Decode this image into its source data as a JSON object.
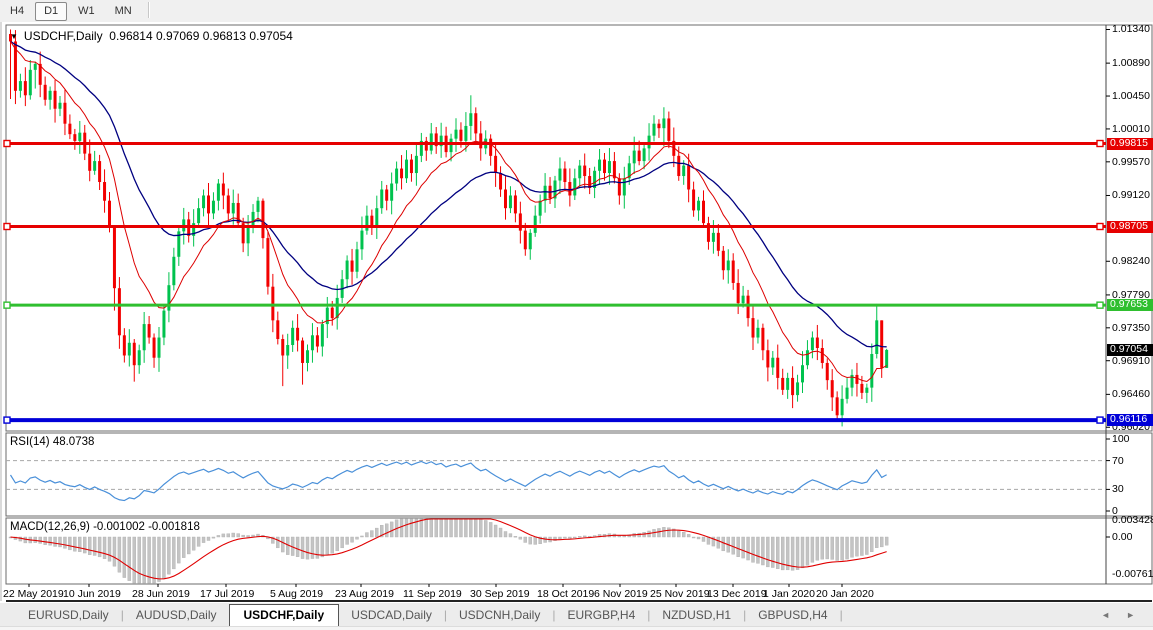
{
  "toolbar": {
    "buttons": [
      {
        "label": "H4",
        "active": false
      },
      {
        "label": "D1",
        "active": true
      },
      {
        "label": "W1",
        "active": false
      },
      {
        "label": "MN",
        "active": false
      }
    ]
  },
  "chart": {
    "dropdown_icon": "▼",
    "symbol_period": "USDCHF,Daily",
    "ohlc_text": "0.96814 0.97069 0.96813 0.97054",
    "ohlc": {
      "open": "0.96814",
      "high": "0.97069",
      "low": "0.96813",
      "close": "0.97054"
    }
  },
  "chart_data": {
    "type": "candlestick+indicators",
    "title": "USDCHF,Daily",
    "x_axis": {
      "labels": [
        "22 May 2019",
        "10 Jun 2019",
        "28 Jun 2019",
        "17 Jul 2019",
        "5 Aug 2019",
        "23 Aug 2019",
        "11 Sep 2019",
        "30 Sep 2019",
        "18 Oct 2019",
        "6 Nov 2019",
        "25 Nov 2019",
        "13 Dec 2019",
        "1 Jan 2020",
        "20 Jan 2020"
      ]
    },
    "main": {
      "price_max": 1.014,
      "price_min": 0.9597,
      "first_open": 1.0128,
      "closes": [
        1.0118,
        1.0052,
        1.0065,
        1.0046,
        1.008,
        1.0088,
        1.006,
        1.004,
        1.0052,
        1.0028,
        1.0036,
        1.0008,
        0.9994,
        0.9985,
        0.9996,
        0.9968,
        0.9945,
        0.9958,
        0.993,
        0.9905,
        0.987,
        0.9788,
        0.9725,
        0.9698,
        0.9715,
        0.9685,
        0.9705,
        0.974,
        0.9722,
        0.9695,
        0.9722,
        0.9758,
        0.9792,
        0.983,
        0.9864,
        0.988,
        0.9858,
        0.9875,
        0.9895,
        0.9912,
        0.9888,
        0.9905,
        0.9928,
        0.9912,
        0.9888,
        0.9902,
        0.9875,
        0.9848,
        0.987,
        0.989,
        0.9905,
        0.9855,
        0.979,
        0.9745,
        0.972,
        0.9698,
        0.9712,
        0.9735,
        0.9718,
        0.9688,
        0.9705,
        0.9725,
        0.971,
        0.974,
        0.9762,
        0.9748,
        0.9775,
        0.98,
        0.9825,
        0.981,
        0.984,
        0.9865,
        0.9885,
        0.987,
        0.9895,
        0.992,
        0.9905,
        0.9928,
        0.9948,
        0.9935,
        0.996,
        0.9942,
        0.9965,
        0.9985,
        0.9972,
        0.9995,
        0.9978,
        0.9992,
        0.997,
        0.9988,
        1.0,
        0.9985,
        1.0005,
        1.0022,
        0.9995,
        0.9975,
        0.9988,
        0.9965,
        0.9942,
        0.992,
        0.9895,
        0.9912,
        0.9888,
        0.9865,
        0.984,
        0.9862,
        0.9885,
        0.9905,
        0.9925,
        0.9908,
        0.9932,
        0.9948,
        0.993,
        0.9912,
        0.9935,
        0.9952,
        0.9938,
        0.9922,
        0.9945,
        0.996,
        0.9942,
        0.9958,
        0.9935,
        0.9912,
        0.9935,
        0.9955,
        0.9972,
        0.9958,
        0.9975,
        0.9992,
        1.0008,
        1.0002,
        1.0015,
        0.9985,
        0.9965,
        0.9938,
        0.9952,
        0.992,
        0.9892,
        0.9905,
        0.9875,
        0.985,
        0.9862,
        0.9838,
        0.9812,
        0.9825,
        0.9795,
        0.9768,
        0.9778,
        0.9748,
        0.9722,
        0.9735,
        0.9705,
        0.9682,
        0.9695,
        0.9668,
        0.9652,
        0.9668,
        0.9645,
        0.9662,
        0.9685,
        0.9705,
        0.9722,
        0.9708,
        0.9688,
        0.9665,
        0.9642,
        0.9618,
        0.964,
        0.9655,
        0.9672,
        0.966,
        0.9648,
        0.9655,
        0.97,
        0.9745,
        0.96814,
        0.97054
      ],
      "wick_overrides": {
        "0": [
          1.0134,
          1.0041
        ],
        "5": [
          1.0091,
          1.0055
        ],
        "21": [
          0.9832,
          0.9758
        ],
        "25": [
          0.972,
          0.9663
        ],
        "51": [
          0.9908,
          0.9841
        ],
        "55": [
          0.9726,
          0.9657
        ],
        "59": [
          0.9722,
          0.9659
        ],
        "93": [
          1.0046,
          0.9986
        ],
        "132": [
          1.003,
          0.9978
        ],
        "167": [
          0.965,
          0.9613
        ],
        "175": [
          0.9767,
          0.9694
        ],
        "176": [
          0.9745,
          0.9668
        ],
        "177": [
          0.97069,
          0.96813
        ]
      },
      "up_color": "#00c24e",
      "down_color": "#f20000",
      "ma_fast": {
        "period": 12,
        "color": "#dd0000"
      },
      "ma_slow": {
        "period": 30,
        "color": "#000080"
      },
      "axis_ticks": [
        "1.01340",
        "1.00890",
        "1.00450",
        "1.00010",
        "0.99570",
        "0.99120",
        "0.98240",
        "0.97790",
        "0.97350",
        "0.96910",
        "0.96460",
        "0.96020"
      ],
      "hlines": [
        {
          "price": 0.99815,
          "label": "0.99815",
          "color": "#e60000",
          "width": 3
        },
        {
          "price": 0.98705,
          "label": "0.98705",
          "color": "#e60000",
          "width": 3
        },
        {
          "price": 0.97653,
          "label": "0.97653",
          "color": "#2fbf2f",
          "width": 3
        },
        {
          "price": 0.96116,
          "label": "0.96116",
          "color": "#0000d8",
          "width": 4
        }
      ],
      "bid_badge": {
        "price": 0.97054,
        "label": "0.97054",
        "bg": "#000000"
      }
    },
    "rsi": {
      "label": "RSI(14) 48.0738",
      "period": 14,
      "current": 48.0738,
      "line_color": "#4a90d9",
      "levels": [
        70,
        30
      ],
      "axis_labels": [
        {
          "text": "100",
          "v": 100
        },
        {
          "text": "70",
          "v": 70
        },
        {
          "text": "30",
          "v": 30
        },
        {
          "text": "0",
          "v": 0
        }
      ]
    },
    "macd": {
      "label": "MACD(12,26,9) -0.001002 -0.001818",
      "params": [
        12,
        26,
        9
      ],
      "current_macd": -0.001002,
      "current_signal": -0.001818,
      "histogram_color": "#c4c4c4",
      "signal_color": "#e00000",
      "axis_labels": [
        {
          "text": "0.003428",
          "v": 0.003428
        },
        {
          "text": "0.00",
          "v": 0
        },
        {
          "text": "-0.007615",
          "v": -0.007615
        }
      ]
    }
  },
  "tab_bar": {
    "left_arrow": "◄",
    "right_arrow": "►",
    "tabs": [
      {
        "label": "EURUSD,Daily",
        "active": false
      },
      {
        "label": "AUDUSD,Daily",
        "active": false
      },
      {
        "label": "USDCHF,Daily",
        "active": true
      },
      {
        "label": "USDCAD,Daily",
        "active": false
      },
      {
        "label": "USDCNH,Daily",
        "active": false
      },
      {
        "label": "EURGBP,H4",
        "active": false
      },
      {
        "label": "NZDUSD,H1",
        "active": false
      },
      {
        "label": "GBPUSD,H4",
        "active": false
      }
    ]
  }
}
